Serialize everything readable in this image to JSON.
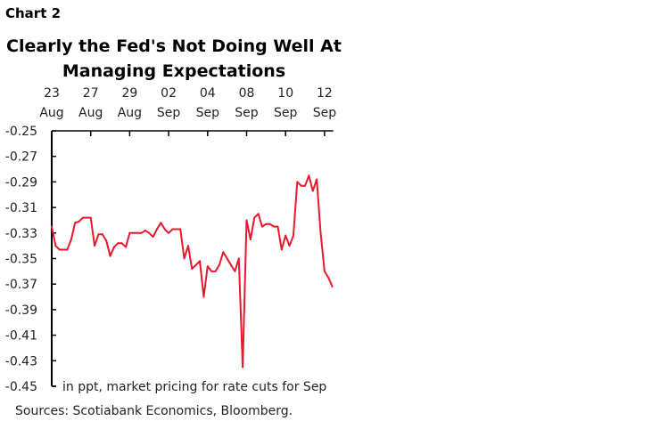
{
  "chart_label": "Chart 2",
  "chart_data": {
    "type": "line",
    "title": "Clearly the Fed's Not Doing Well At Managing Expectations",
    "title_lines": [
      "Clearly the Fed's Not Doing Well At",
      "Managing Expectations"
    ],
    "annotation": "in ppt, market pricing for rate cuts for Sep",
    "x_ticks": [
      [
        "23",
        "Aug"
      ],
      [
        "27",
        "Aug"
      ],
      [
        "29",
        "Aug"
      ],
      [
        "02",
        "Sep"
      ],
      [
        "04",
        "Sep"
      ],
      [
        "08",
        "Sep"
      ],
      [
        "10",
        "Sep"
      ],
      [
        "12",
        "Sep"
      ]
    ],
    "x_axis_position": "top",
    "y_ticks": [
      "-0.25",
      "-0.27",
      "-0.29",
      "-0.31",
      "-0.33",
      "-0.35",
      "-0.37",
      "-0.39",
      "-0.41",
      "-0.43",
      "-0.45"
    ],
    "ylim": [
      -0.45,
      -0.25
    ],
    "samples_per_tick": 10,
    "grid": false,
    "line_color": "#e8192c",
    "values": [
      -0.325,
      -0.34,
      -0.343,
      -0.343,
      -0.343,
      -0.335,
      -0.322,
      -0.321,
      -0.318,
      -0.318,
      -0.318,
      -0.34,
      -0.331,
      -0.331,
      -0.336,
      -0.348,
      -0.341,
      -0.338,
      -0.338,
      -0.341,
      -0.33,
      -0.33,
      -0.33,
      -0.33,
      -0.328,
      -0.33,
      -0.333,
      -0.327,
      -0.322,
      -0.327,
      -0.33,
      -0.327,
      -0.327,
      -0.327,
      -0.35,
      -0.34,
      -0.358,
      -0.355,
      -0.352,
      -0.38,
      -0.356,
      -0.36,
      -0.36,
      -0.355,
      -0.345,
      -0.35,
      -0.355,
      -0.36,
      -0.35,
      -0.435,
      -0.32,
      -0.335,
      -0.318,
      -0.315,
      -0.325,
      -0.323,
      -0.323,
      -0.325,
      -0.325,
      -0.343,
      -0.332,
      -0.34,
      -0.332,
      -0.29,
      -0.293,
      -0.293,
      -0.285,
      -0.297,
      -0.288,
      -0.33,
      -0.36,
      -0.365,
      -0.372
    ]
  },
  "source": "Sources: Scotiabank Economics, Bloomberg."
}
